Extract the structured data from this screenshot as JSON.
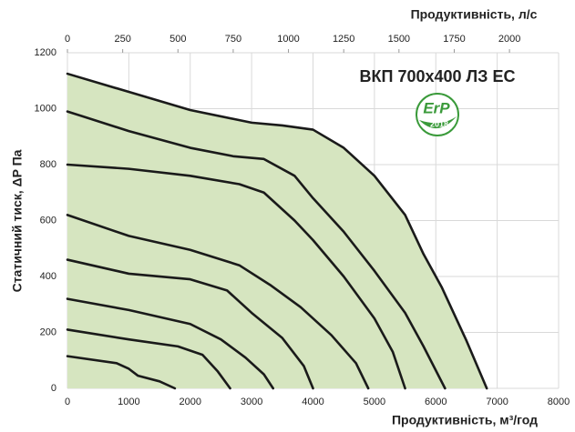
{
  "chart_data": {
    "type": "line",
    "title": "ВКП 700х400 ЛЗ ЕС",
    "x_label": "Продуктивність, м³/год",
    "x2_label": "Продуктивність, л/с",
    "y_label": "Статичний тиск, ΔP Па",
    "xlim": [
      0,
      8000
    ],
    "xticks": [
      0,
      1000,
      2000,
      3000,
      4000,
      5000,
      6000,
      7000,
      8000
    ],
    "x2lim": [
      0,
      2222.2
    ],
    "x2ticks": [
      0,
      250,
      500,
      750,
      1000,
      1250,
      1500,
      1750,
      2000
    ],
    "ylim": [
      0,
      1200
    ],
    "yticks": [
      0,
      200,
      400,
      600,
      800,
      1000,
      1200
    ],
    "grid": true,
    "color": "#1a1a1a",
    "area_color": "#d6e5c0",
    "badge": {
      "text": "ErP",
      "year": "2018",
      "color": "#3a9a3a"
    },
    "series": [
      {
        "x": [
          0,
          1000,
          2000,
          3000,
          3500,
          4000,
          4500,
          5000,
          5500,
          5800,
          6100,
          6500,
          6830
        ],
        "values": [
          1125,
          1060,
          995,
          950,
          940,
          925,
          860,
          760,
          620,
          480,
          360,
          170,
          0
        ]
      },
      {
        "x": [
          0,
          1000,
          2000,
          2700,
          3200,
          3700,
          4000,
          4500,
          5000,
          5500,
          5800,
          6150
        ],
        "values": [
          990,
          920,
          860,
          830,
          820,
          760,
          680,
          560,
          420,
          270,
          150,
          0
        ]
      },
      {
        "x": [
          0,
          1000,
          2000,
          2800,
          3200,
          3700,
          4000,
          4500,
          5000,
          5300,
          5500
        ],
        "values": [
          800,
          785,
          760,
          730,
          700,
          600,
          530,
          400,
          250,
          130,
          0
        ]
      },
      {
        "x": [
          0,
          1000,
          2000,
          2800,
          3300,
          3800,
          4300,
          4700,
          4900
        ],
        "values": [
          620,
          545,
          495,
          440,
          370,
          290,
          190,
          90,
          0
        ]
      },
      {
        "x": [
          0,
          1000,
          2000,
          2600,
          3000,
          3500,
          3850,
          4000
        ],
        "values": [
          460,
          410,
          390,
          350,
          270,
          180,
          80,
          0
        ]
      },
      {
        "x": [
          0,
          1000,
          2000,
          2500,
          2900,
          3200,
          3350
        ],
        "values": [
          320,
          280,
          230,
          175,
          110,
          50,
          0
        ]
      },
      {
        "x": [
          0,
          1000,
          1800,
          2200,
          2450,
          2650
        ],
        "values": [
          210,
          175,
          150,
          120,
          60,
          0
        ]
      },
      {
        "x": [
          0,
          800,
          1000,
          1150,
          1500,
          1750
        ],
        "values": [
          115,
          90,
          70,
          45,
          25,
          0
        ]
      }
    ]
  }
}
